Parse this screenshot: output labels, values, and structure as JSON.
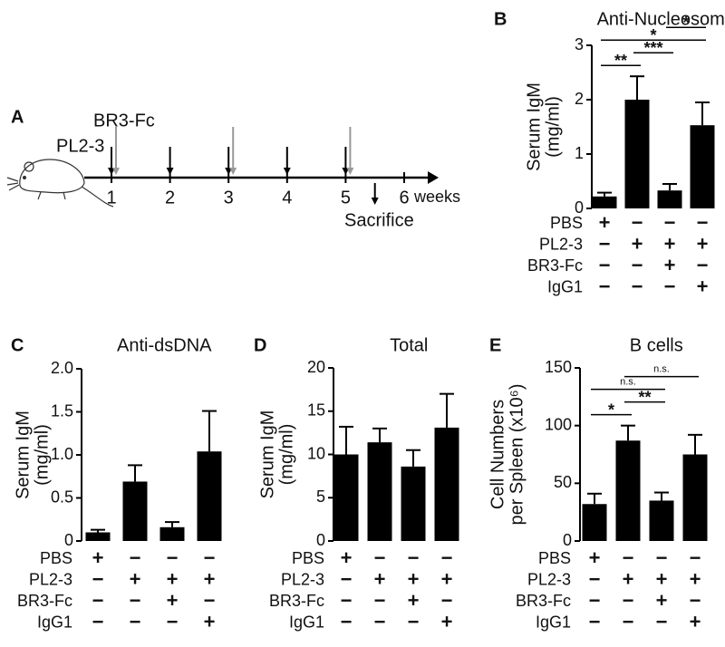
{
  "timeline": {
    "panel": "A",
    "unit": "weeks",
    "ticks": [
      "1",
      "2",
      "3",
      "4",
      "5",
      "6"
    ],
    "treatments": [
      {
        "name": "PL2-3",
        "color": "#000000",
        "weeks": [
          1,
          2,
          3,
          4,
          5
        ]
      },
      {
        "name": "BR3-Fc",
        "color": "#999999",
        "weeks": [
          1,
          3,
          5
        ]
      }
    ],
    "endpoint": {
      "label": "Sacrifice",
      "week": 5.5
    }
  },
  "chart_data": [
    {
      "type": "bar",
      "panel": "B",
      "title": "Anti-Nucleosome",
      "ylabel": [
        "Serum IgM",
        "(mg/ml)"
      ],
      "color": "#000000",
      "values": [
        0.22,
        2.0,
        0.33,
        1.53
      ],
      "errors": [
        0.07,
        0.43,
        0.12,
        0.42
      ],
      "ylim": [
        0,
        3
      ],
      "yticks": [
        0,
        1,
        2,
        3
      ],
      "conditions": [
        {
          "name": "PBS",
          "marks": [
            "+",
            "−",
            "−",
            "−"
          ]
        },
        {
          "name": "PL2-3",
          "marks": [
            "−",
            "+",
            "+",
            "+"
          ]
        },
        {
          "name": "BR3-Fc",
          "marks": [
            "−",
            "−",
            "+",
            "−"
          ]
        },
        {
          "name": "IgG1",
          "marks": [
            "−",
            "−",
            "−",
            "+"
          ]
        }
      ],
      "significance": [
        {
          "between": [
            0,
            1
          ],
          "label": "**"
        },
        {
          "between": [
            1,
            2
          ],
          "label": "***"
        },
        {
          "between": [
            0,
            3
          ],
          "label": "*"
        },
        {
          "between": [
            2,
            3
          ],
          "label": "*"
        }
      ]
    },
    {
      "type": "bar",
      "panel": "C",
      "title": "Anti-dsDNA",
      "ylabel": [
        "Serum IgM",
        "(mg/ml)"
      ],
      "color": "#000000",
      "values": [
        0.1,
        0.69,
        0.16,
        1.04
      ],
      "errors": [
        0.03,
        0.19,
        0.06,
        0.47
      ],
      "ylim": [
        0,
        2
      ],
      "yticks": [
        0,
        0.5,
        {
          "value": 1,
          "label": "1.0"
        },
        1.5,
        {
          "value": 2,
          "label": "2.0"
        }
      ],
      "conditions": [
        {
          "name": "PBS",
          "marks": [
            "+",
            "−",
            "−",
            "−"
          ]
        },
        {
          "name": "PL2-3",
          "marks": [
            "−",
            "+",
            "+",
            "+"
          ]
        },
        {
          "name": "BR3-Fc",
          "marks": [
            "−",
            "−",
            "+",
            "−"
          ]
        },
        {
          "name": "IgG1",
          "marks": [
            "−",
            "−",
            "−",
            "+"
          ]
        }
      ],
      "significance": []
    },
    {
      "type": "bar",
      "panel": "D",
      "title": "Total",
      "ylabel": [
        "Serum IgM",
        "(mg/ml)"
      ],
      "color": "#000000",
      "values": [
        10,
        11.4,
        8.6,
        13.1
      ],
      "errors": [
        3.2,
        1.6,
        1.9,
        3.9
      ],
      "ylim": [
        0,
        20
      ],
      "yticks": [
        0,
        5,
        10,
        15,
        20
      ],
      "conditions": [
        {
          "name": "PBS",
          "marks": [
            "+",
            "−",
            "−",
            "−"
          ]
        },
        {
          "name": "PL2-3",
          "marks": [
            "−",
            "+",
            "+",
            "+"
          ]
        },
        {
          "name": "BR3-Fc",
          "marks": [
            "−",
            "−",
            "+",
            "−"
          ]
        },
        {
          "name": "IgG1",
          "marks": [
            "−",
            "−",
            "−",
            "+"
          ]
        }
      ],
      "significance": []
    },
    {
      "type": "bar",
      "panel": "E",
      "title": "B cells",
      "ylabel": [
        "Cell Numbers",
        "per Spleen (x10⁶)"
      ],
      "color": "#000000",
      "values": [
        32,
        87,
        35,
        75
      ],
      "errors": [
        9,
        13,
        7,
        17
      ],
      "ylim": [
        0,
        150
      ],
      "yticks": [
        0,
        50,
        100,
        150
      ],
      "conditions": [
        {
          "name": "PBS",
          "marks": [
            "+",
            "−",
            "−",
            "−"
          ]
        },
        {
          "name": "PL2-3",
          "marks": [
            "−",
            "+",
            "+",
            "+"
          ]
        },
        {
          "name": "BR3-Fc",
          "marks": [
            "−",
            "−",
            "+",
            "−"
          ]
        },
        {
          "name": "IgG1",
          "marks": [
            "−",
            "−",
            "−",
            "+"
          ]
        }
      ],
      "significance": [
        {
          "between": [
            0,
            1
          ],
          "label": "*"
        },
        {
          "between": [
            1,
            2
          ],
          "label": "**"
        },
        {
          "between": [
            0,
            2
          ],
          "label": "n.s."
        },
        {
          "between": [
            1,
            3
          ],
          "label": "n.s."
        }
      ]
    }
  ]
}
